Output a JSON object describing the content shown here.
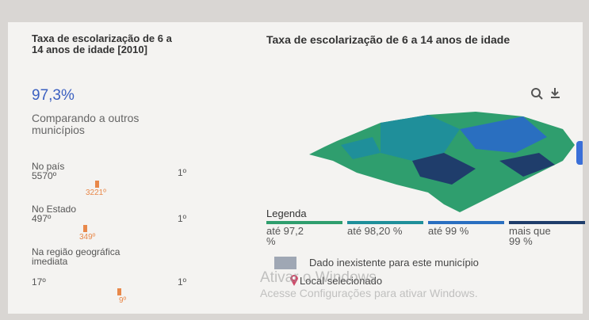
{
  "indicator": {
    "title": "Taxa de escolarização de 6 a 14 anos de idade [2010]",
    "value": "97,3%"
  },
  "comparison": {
    "title": "Comparando a outros municípios",
    "rows": [
      {
        "label": "No país",
        "total": "5570º",
        "top": "1º",
        "position": "3221º"
      },
      {
        "label": "No Estado",
        "total": "497º",
        "top": "1º",
        "position": "349º"
      },
      {
        "label": "Na região geográfica imediata",
        "total": "17º",
        "top": "1º",
        "position": "9º"
      }
    ]
  },
  "map": {
    "title": "Taxa de escolarização de 6 a 14 anos de idade",
    "legend_title": "Legenda",
    "legend": [
      {
        "label": "até 97,2 %",
        "color": "#2f9e6e"
      },
      {
        "label": "até 98,20 %",
        "color": "#1f8f9a"
      },
      {
        "label": "até 99 %",
        "color": "#2a6fc0"
      },
      {
        "label": "mais que 99 %",
        "color": "#1f3d6b"
      }
    ],
    "no_data": "Dado inexistente para este município",
    "selected": "Local selecionado"
  },
  "watermark": {
    "title": "Ativar o Windows",
    "text": "Acesse Configurações para ativar Windows."
  }
}
